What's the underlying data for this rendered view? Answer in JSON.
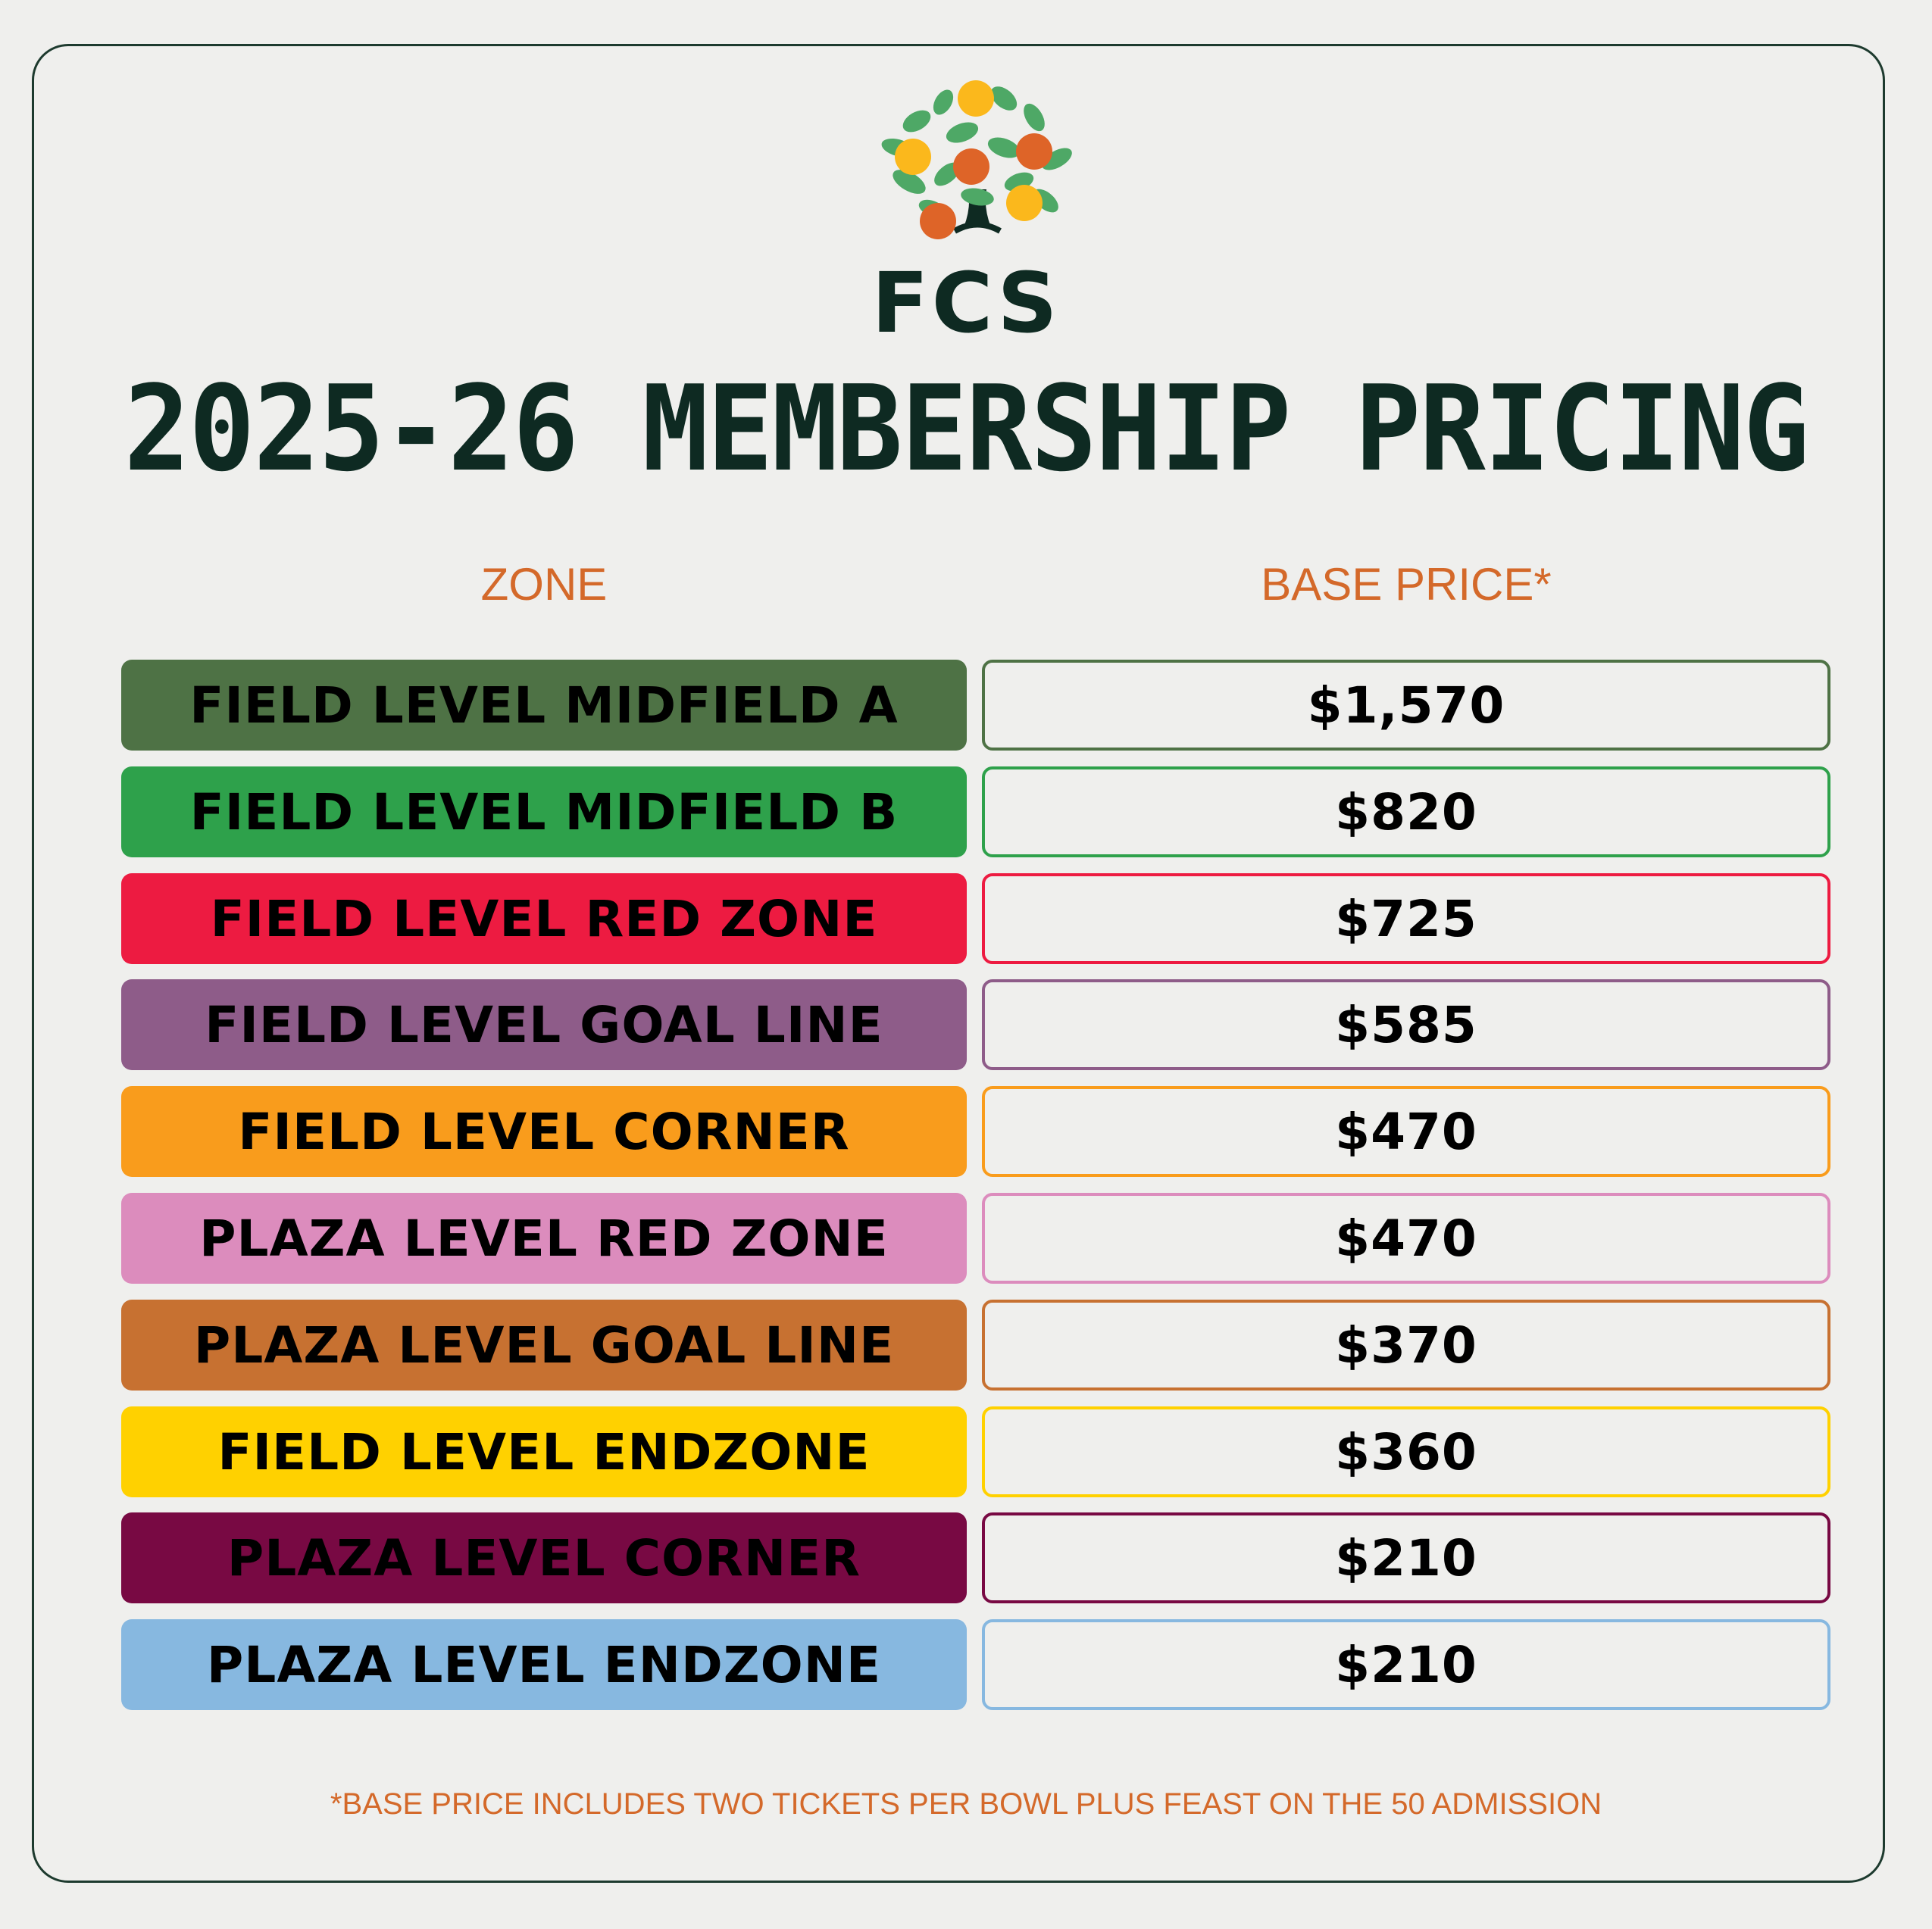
{
  "brand": "FCS",
  "title": "2025-26 MEMBERSHIP PRICING",
  "headers": {
    "zone": "ZONE",
    "price": "BASE PRICE*"
  },
  "rows": [
    {
      "zone": "FIELD LEVEL MIDFIELD A",
      "price": "$1,570",
      "color": "#4e7245"
    },
    {
      "zone": "FIELD LEVEL MIDFIELD B",
      "price": "$820",
      "color": "#2ea14b"
    },
    {
      "zone": "FIELD LEVEL RED ZONE",
      "price": "$725",
      "color": "#ed1b41"
    },
    {
      "zone": "FIELD LEVEL GOAL LINE",
      "price": "$585",
      "color": "#8e5c89"
    },
    {
      "zone": "FIELD LEVEL CORNER",
      "price": "$470",
      "color": "#f99c1c"
    },
    {
      "zone": "PLAZA LEVEL RED ZONE",
      "price": "$470",
      "color": "#dc8cbd"
    },
    {
      "zone": "PLAZA LEVEL GOAL LINE",
      "price": "$370",
      "color": "#c77131"
    },
    {
      "zone": "FIELD LEVEL ENDZONE",
      "price": "$360",
      "color": "#ffd100"
    },
    {
      "zone": "PLAZA LEVEL CORNER",
      "price": "$210",
      "color": "#780943"
    },
    {
      "zone": "PLAZA LEVEL ENDZONE",
      "price": "$210",
      "color": "#87b8e0"
    }
  ],
  "footnote": "*BASE PRICE INCLUDES TWO TICKETS PER BOWL PLUS FEAST ON THE 50 ADMISSION"
}
